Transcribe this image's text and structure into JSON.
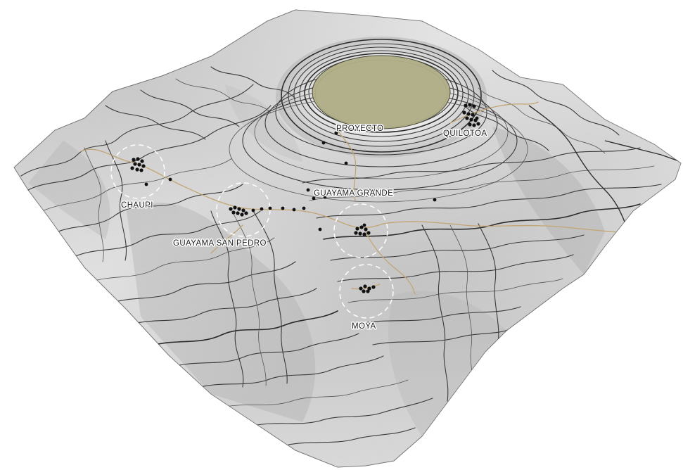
{
  "map": {
    "lake_color": "#b2b08a",
    "terrain_color": "#dcdcdc",
    "trail_color": "#c2a574",
    "contour_color": "#3a3a3a"
  },
  "labels": {
    "proyecto": "PROYECTO",
    "quilotoa": "QUILOTOA",
    "guayama_grande": "GUAYAMA GRANDE",
    "chaupi": "CHAUPI",
    "guayama_san_pedro": "GUAYAMA SAN PEDRO",
    "moya": "MOYA"
  }
}
